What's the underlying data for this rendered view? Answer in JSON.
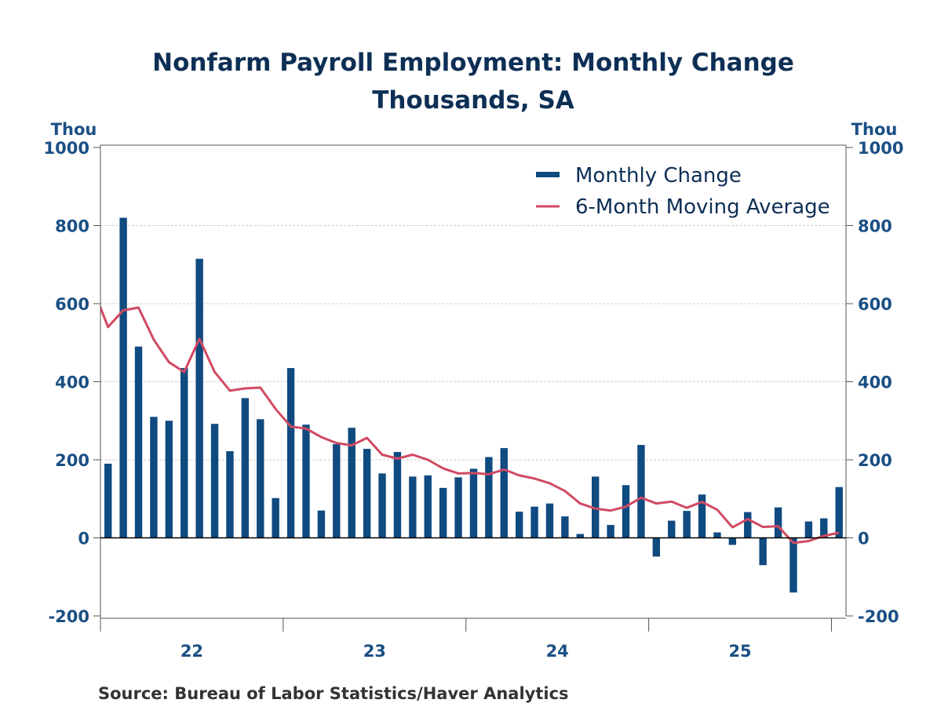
{
  "chart_data": {
    "type": "bar",
    "title": "Nonfarm Payroll Employment: Monthly Change",
    "subtitle": "Thousands, SA",
    "ylabel_left": "Thou",
    "ylabel_right": "Thou",
    "ylim": [
      -200,
      1000
    ],
    "yticks": [
      -200,
      0,
      200,
      400,
      600,
      800,
      1000
    ],
    "year_labels": [
      "22",
      "23",
      "24",
      "25"
    ],
    "grid": true,
    "legend_placement": "top-right",
    "source": "Source:  Bureau of Labor Statistics/Haver Analytics",
    "colors": {
      "bars": "#0f4a80",
      "line": "#d04a62",
      "text": "#0e2f55",
      "axis_labels": "#1a4f84"
    },
    "series": [
      {
        "name": "Monthly Change",
        "type": "bar",
        "x": [
          "2022-01",
          "2022-02",
          "2022-03",
          "2022-04",
          "2022-05",
          "2022-06",
          "2022-07",
          "2022-08",
          "2022-09",
          "2022-10",
          "2022-11",
          "2022-12",
          "2023-01",
          "2023-02",
          "2023-03",
          "2023-04",
          "2023-05",
          "2023-06",
          "2023-07",
          "2023-08",
          "2023-09",
          "2023-10",
          "2023-11",
          "2023-12",
          "2024-01",
          "2024-02",
          "2024-03",
          "2024-04",
          "2024-05",
          "2024-06",
          "2024-07",
          "2024-08",
          "2024-09",
          "2024-10",
          "2024-11",
          "2024-12",
          "2025-01",
          "2025-02",
          "2025-03",
          "2025-04",
          "2025-05",
          "2025-06",
          "2025-07",
          "2025-08",
          "2025-09",
          "2025-10",
          "2025-11",
          "2025-12",
          "2026-01"
        ],
        "values": [
          190,
          820,
          490,
          310,
          300,
          435,
          715,
          292,
          222,
          358,
          304,
          102,
          435,
          290,
          70,
          240,
          282,
          228,
          165,
          220,
          157,
          160,
          128,
          155,
          177,
          207,
          230,
          67,
          80,
          88,
          55,
          10,
          157,
          33,
          135,
          238,
          -48,
          44,
          69,
          111,
          14,
          -18,
          66,
          -70,
          78,
          -140,
          42,
          50,
          130
        ]
      },
      {
        "name": "6-Month Moving Average",
        "type": "line",
        "x": [
          "2021-12",
          "2022-01",
          "2022-02",
          "2022-03",
          "2022-04",
          "2022-05",
          "2022-06",
          "2022-07",
          "2022-08",
          "2022-09",
          "2022-10",
          "2022-11",
          "2022-12",
          "2023-01",
          "2023-02",
          "2023-03",
          "2023-04",
          "2023-05",
          "2023-06",
          "2023-07",
          "2023-08",
          "2023-09",
          "2023-10",
          "2023-11",
          "2023-12",
          "2024-01",
          "2024-02",
          "2024-03",
          "2024-04",
          "2024-05",
          "2024-06",
          "2024-07",
          "2024-08",
          "2024-09",
          "2024-10",
          "2024-11",
          "2024-12",
          "2025-01",
          "2025-02",
          "2025-03",
          "2025-04",
          "2025-05",
          "2025-06",
          "2025-07",
          "2025-08",
          "2025-09",
          "2025-10",
          "2025-11",
          "2025-12",
          "2026-01"
        ],
        "values": [
          640,
          540,
          583,
          590,
          508,
          450,
          425,
          510,
          425,
          377,
          383,
          385,
          330,
          285,
          280,
          258,
          243,
          237,
          256,
          213,
          203,
          213,
          200,
          178,
          165,
          166,
          163,
          175,
          160,
          152,
          140,
          120,
          88,
          75,
          70,
          80,
          103,
          88,
          93,
          77,
          92,
          72,
          27,
          48,
          28,
          30,
          -13,
          -8,
          5,
          13
        ]
      }
    ]
  }
}
